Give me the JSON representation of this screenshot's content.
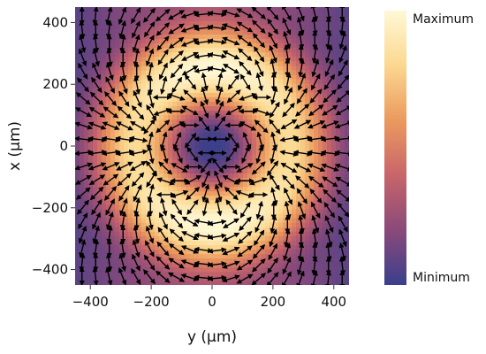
{
  "chart_data": {
    "type": "heatmap",
    "title": "",
    "xlabel": "y (μm)",
    "ylabel": "x (μm)",
    "xlim": [
      -450,
      450
    ],
    "ylim": [
      -450,
      450
    ],
    "xticks": [
      -400,
      -200,
      0,
      200,
      400
    ],
    "yticks": [
      -400,
      -200,
      0,
      200,
      400
    ],
    "xtick_labels": [
      "−400",
      "−200",
      "0",
      "200",
      "400"
    ],
    "ytick_labels": [
      "−400",
      "−200",
      "0",
      "200",
      "400"
    ],
    "field": {
      "intensity_profile": "ring-shaped doughnut beam: zero at center, bright annulus peaking near r ≈ 260 μm, dark at large radius; horizontal dark lobes structure",
      "vector_overlay": "black double-headed arrows showing polarization direction on a regular grid",
      "grid_spacing_um": 45
    },
    "colorbar": {
      "max_label": "Maximum",
      "min_label": "Minimum",
      "colors": [
        "#3b3f8c",
        "#8a4a7a",
        "#c8656a",
        "#eb9a5e",
        "#fbd890",
        "#fff8d6"
      ]
    },
    "grid": false,
    "legend": "none"
  }
}
